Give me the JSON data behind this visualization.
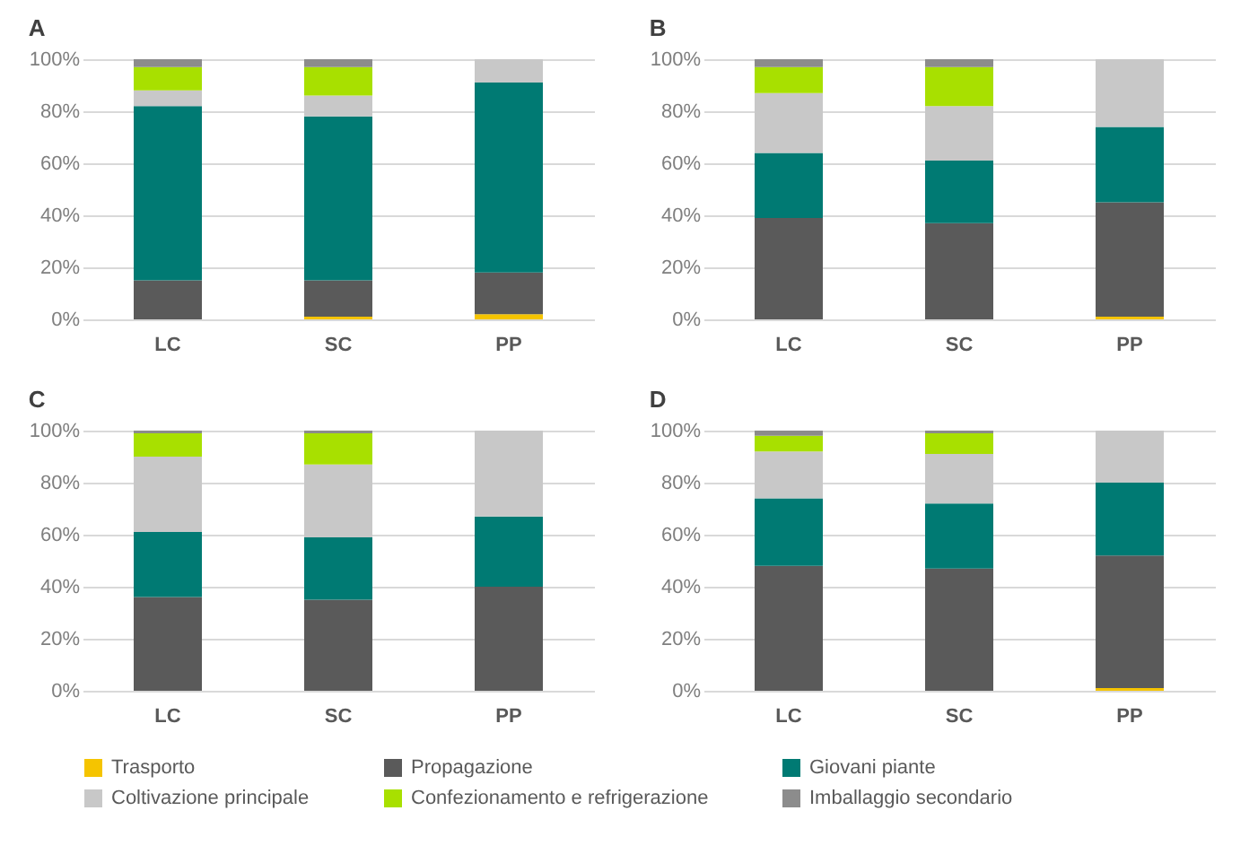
{
  "chart_data": [
    {
      "type": "bar",
      "title": "A",
      "categories": [
        "LC",
        "SC",
        "PP"
      ],
      "stacked": true,
      "ylim": [
        0,
        100
      ],
      "yticks": [
        {
          "value": 0,
          "label": "0%"
        },
        {
          "value": 20,
          "label": "20%"
        },
        {
          "value": 40,
          "label": "40%"
        },
        {
          "value": 60,
          "label": "60%"
        },
        {
          "value": 80,
          "label": "80%"
        },
        {
          "value": 100,
          "label": "100%"
        }
      ],
      "grid": "y",
      "legend": "bottom",
      "series": [
        {
          "name": "Trasporto",
          "color": "#f5c400",
          "values": [
            0,
            1,
            2
          ]
        },
        {
          "name": "Propagazione",
          "color": "#5a5a5a",
          "values": [
            15,
            14,
            16
          ]
        },
        {
          "name": "Giovani piante",
          "color": "#007a73",
          "values": [
            67,
            63,
            73
          ]
        },
        {
          "name": "Coltivazione principale",
          "color": "#c8c8c8",
          "values": [
            6,
            8,
            9
          ]
        },
        {
          "name": "Confezionamento e refrigerazione",
          "color": "#a8e000",
          "values": [
            9,
            11,
            0
          ]
        },
        {
          "name": "Imballaggio secondario",
          "color": "#8c8c8c",
          "values": [
            3,
            3,
            0
          ]
        }
      ]
    },
    {
      "type": "bar",
      "title": "B",
      "categories": [
        "LC",
        "SC",
        "PP"
      ],
      "stacked": true,
      "ylim": [
        0,
        100
      ],
      "yticks": [
        {
          "value": 0,
          "label": "0%"
        },
        {
          "value": 20,
          "label": "20%"
        },
        {
          "value": 40,
          "label": "40%"
        },
        {
          "value": 60,
          "label": "60%"
        },
        {
          "value": 80,
          "label": "80%"
        },
        {
          "value": 100,
          "label": "100%"
        }
      ],
      "grid": "y",
      "legend": "bottom",
      "series": [
        {
          "name": "Trasporto",
          "color": "#f5c400",
          "values": [
            0,
            0,
            1
          ]
        },
        {
          "name": "Propagazione",
          "color": "#5a5a5a",
          "values": [
            39,
            37,
            44
          ]
        },
        {
          "name": "Giovani piante",
          "color": "#007a73",
          "values": [
            25,
            24,
            29
          ]
        },
        {
          "name": "Coltivazione principale",
          "color": "#c8c8c8",
          "values": [
            23,
            21,
            26
          ]
        },
        {
          "name": "Confezionamento e refrigerazione",
          "color": "#a8e000",
          "values": [
            10,
            15,
            0
          ]
        },
        {
          "name": "Imballaggio secondario",
          "color": "#8c8c8c",
          "values": [
            3,
            3,
            0
          ]
        }
      ]
    },
    {
      "type": "bar",
      "title": "C",
      "categories": [
        "LC",
        "SC",
        "PP"
      ],
      "stacked": true,
      "ylim": [
        0,
        100
      ],
      "yticks": [
        {
          "value": 0,
          "label": "0%"
        },
        {
          "value": 20,
          "label": "20%"
        },
        {
          "value": 40,
          "label": "40%"
        },
        {
          "value": 60,
          "label": "60%"
        },
        {
          "value": 80,
          "label": "80%"
        },
        {
          "value": 100,
          "label": "100%"
        }
      ],
      "grid": "y",
      "legend": "bottom",
      "series": [
        {
          "name": "Trasporto",
          "color": "#f5c400",
          "values": [
            0,
            0,
            0
          ]
        },
        {
          "name": "Propagazione",
          "color": "#5a5a5a",
          "values": [
            36,
            35,
            40
          ]
        },
        {
          "name": "Giovani piante",
          "color": "#007a73",
          "values": [
            25,
            24,
            27
          ]
        },
        {
          "name": "Coltivazione principale",
          "color": "#c8c8c8",
          "values": [
            29,
            28,
            33
          ]
        },
        {
          "name": "Confezionamento e refrigerazione",
          "color": "#a8e000",
          "values": [
            9,
            12,
            0
          ]
        },
        {
          "name": "Imballaggio secondario",
          "color": "#8c8c8c",
          "values": [
            1,
            1,
            0
          ]
        }
      ]
    },
    {
      "type": "bar",
      "title": "D",
      "categories": [
        "LC",
        "SC",
        "PP"
      ],
      "stacked": true,
      "ylim": [
        0,
        100
      ],
      "yticks": [
        {
          "value": 0,
          "label": "0%"
        },
        {
          "value": 20,
          "label": "20%"
        },
        {
          "value": 40,
          "label": "40%"
        },
        {
          "value": 60,
          "label": "60%"
        },
        {
          "value": 80,
          "label": "80%"
        },
        {
          "value": 100,
          "label": "100%"
        }
      ],
      "grid": "y",
      "legend": "bottom",
      "series": [
        {
          "name": "Trasporto",
          "color": "#f5c400",
          "values": [
            0,
            0,
            1
          ]
        },
        {
          "name": "Propagazione",
          "color": "#5a5a5a",
          "values": [
            48,
            47,
            51
          ]
        },
        {
          "name": "Giovani piante",
          "color": "#007a73",
          "values": [
            26,
            25,
            28
          ]
        },
        {
          "name": "Coltivazione principale",
          "color": "#c8c8c8",
          "values": [
            18,
            19,
            20
          ]
        },
        {
          "name": "Confezionamento e refrigerazione",
          "color": "#a8e000",
          "values": [
            6,
            8,
            0
          ]
        },
        {
          "name": "Imballaggio secondario",
          "color": "#8c8c8c",
          "values": [
            2,
            1,
            0
          ]
        }
      ]
    }
  ]
}
